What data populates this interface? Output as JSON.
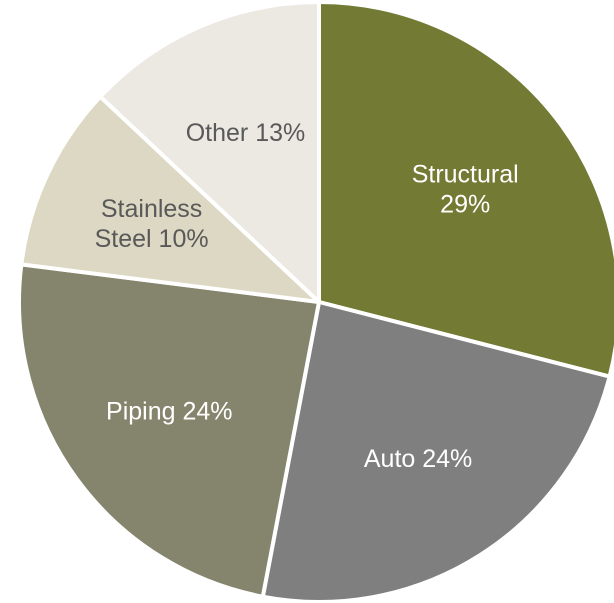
{
  "chart_data": {
    "type": "pie",
    "title": "",
    "start_angle_deg": 0,
    "direction": "clockwise",
    "slices": [
      {
        "category": "Structural",
        "value": 29,
        "label_lines": [
          "Structural",
          "29%"
        ],
        "color": "#737A34",
        "label_color": "#ffffff"
      },
      {
        "category": "Auto",
        "value": 24,
        "label_lines": [
          "Auto 24%"
        ],
        "color": "#7F7F7F",
        "label_color": "#ffffff"
      },
      {
        "category": "Piping",
        "value": 24,
        "label_lines": [
          "Piping 24%"
        ],
        "color": "#85856E",
        "label_color": "#ffffff"
      },
      {
        "category": "Stainless Steel",
        "value": 10,
        "label_lines": [
          "Stainless",
          "Steel 10%"
        ],
        "color": "#DDD8C3",
        "label_color": "#595959"
      },
      {
        "category": "Other",
        "value": 13,
        "label_lines": [
          "Other 13%"
        ],
        "color": "#ECE9E3",
        "label_color": "#595959"
      }
    ]
  }
}
